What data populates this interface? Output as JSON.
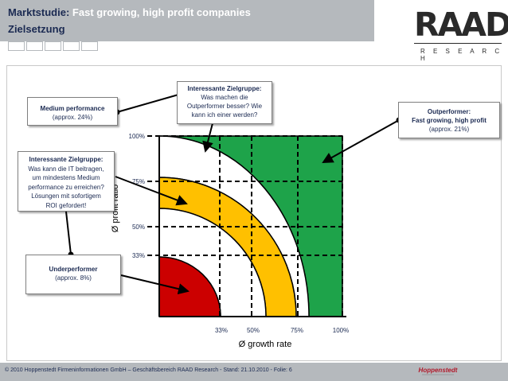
{
  "header": {
    "title_prefix": "Marktstudie:",
    "title_highlight": "Fast growing, high profit companies",
    "subtitle": "Zielsetzung",
    "tab_count": 5
  },
  "logo": {
    "brand": "RAAD",
    "sub": "R E S E A R C H"
  },
  "diagram": {
    "y_axis_label": "Ø profit ratio",
    "x_axis_label": "Ø growth rate",
    "y_ticks": [
      "100%",
      "75%",
      "50%",
      "33%"
    ],
    "x_ticks": [
      "33%",
      "50%",
      "75%",
      "100%"
    ],
    "colors": {
      "green": "#1ea34a",
      "yellow": "#ffc000",
      "red": "#cc0000"
    }
  },
  "callouts": {
    "medium": {
      "title": "Medium performance",
      "detail": "(approx. 24%)"
    },
    "interessante_top": {
      "title": "Interessante Zielgruppe:",
      "lines": [
        "Was machen die",
        "Outperformer besser? Wie",
        "kann ich einer werden?"
      ]
    },
    "outperformer": {
      "title": "Outperformer:",
      "title2": "Fast growing, high profit",
      "detail": "(approx. 21%)"
    },
    "interessante_left": {
      "title": "Interessante Zielgruppe:",
      "lines": [
        "Was kann die IT beitragen,",
        "um mindestens Medium",
        "performance zu erreichen?",
        "Lösungen mit sofortigem",
        "ROI gefordert!"
      ]
    },
    "under": {
      "title": "Underperformer",
      "detail": "(approx. 8%)"
    }
  },
  "footer": {
    "text": "© 2010 Hoppenstedt Firmeninformationen GmbH – Geschäftsbereich RAAD Research - Stand: 21.10.2010 - Folie: 6",
    "logo_text": "Hoppenstedt"
  }
}
